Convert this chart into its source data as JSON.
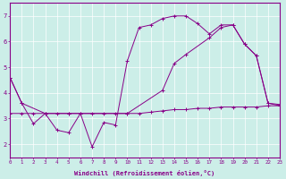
{
  "xlabel": "Windchill (Refroidissement éolien,°C)",
  "xlim": [
    0,
    23
  ],
  "ylim": [
    1.5,
    7.5
  ],
  "yticks": [
    2,
    3,
    4,
    5,
    6,
    7
  ],
  "xticks": [
    0,
    1,
    2,
    3,
    4,
    5,
    6,
    7,
    8,
    9,
    10,
    11,
    12,
    13,
    14,
    15,
    16,
    17,
    18,
    19,
    20,
    21,
    22,
    23
  ],
  "color": "#880088",
  "bg_color": "#cceee8",
  "line1_x": [
    0,
    1,
    2,
    3,
    4,
    5,
    6,
    7,
    8,
    9,
    10,
    11,
    12,
    13,
    14,
    15,
    16,
    17,
    18,
    19,
    20,
    21,
    22,
    23
  ],
  "line1_y": [
    3.2,
    3.2,
    3.2,
    3.2,
    3.2,
    3.2,
    3.2,
    3.2,
    3.2,
    3.2,
    3.2,
    3.2,
    3.25,
    3.3,
    3.35,
    3.35,
    3.4,
    3.4,
    3.45,
    3.45,
    3.45,
    3.45,
    3.5,
    3.5
  ],
  "line2_x": [
    0,
    1,
    3,
    5,
    10,
    13,
    14,
    15,
    17,
    18,
    19,
    20,
    21,
    22,
    23
  ],
  "line2_y": [
    4.6,
    3.6,
    3.2,
    3.2,
    3.2,
    4.1,
    5.15,
    5.5,
    6.15,
    6.55,
    6.65,
    5.9,
    5.45,
    3.6,
    3.5
  ],
  "line3_x": [
    0,
    1,
    2,
    3,
    4,
    5,
    6,
    7,
    8,
    9,
    10,
    11,
    12,
    13,
    14,
    15,
    16,
    17,
    18,
    19,
    20,
    21,
    22,
    23
  ],
  "line3_y": [
    4.6,
    3.6,
    2.8,
    3.2,
    2.55,
    2.45,
    3.2,
    1.9,
    2.85,
    2.75,
    5.25,
    6.55,
    6.65,
    6.9,
    7.0,
    7.0,
    6.7,
    6.3,
    6.65,
    6.65,
    5.9,
    5.45,
    3.6,
    3.55
  ]
}
